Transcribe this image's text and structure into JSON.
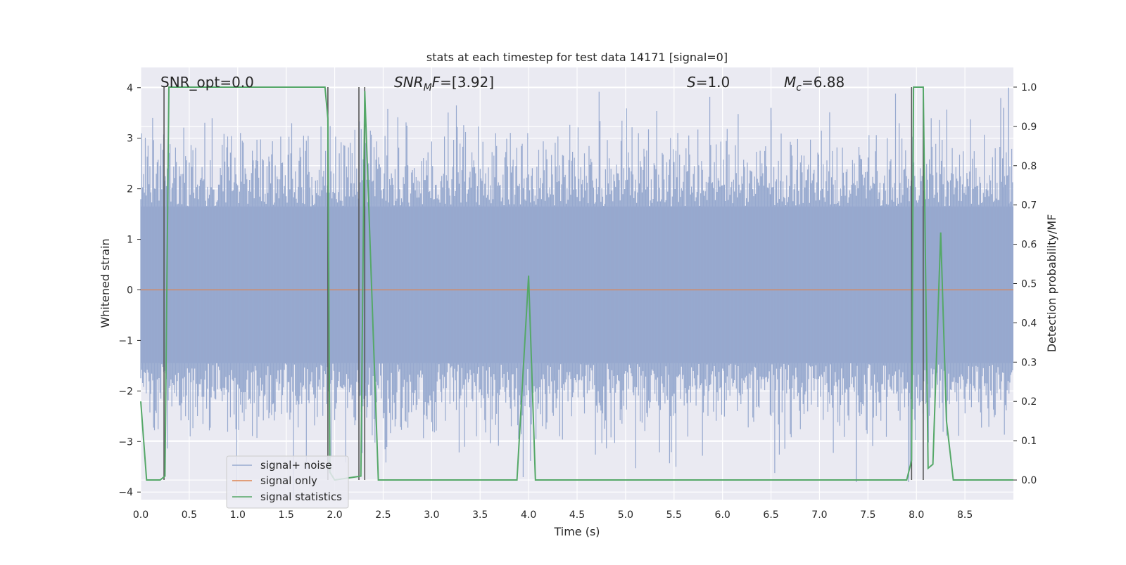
{
  "chart_data": {
    "type": "line",
    "title": "stats at each timestep for test data 14171 [signal=0]",
    "xlabel": "Time (s)",
    "ylabel": "Whitened strain",
    "y2label": "Detection probability/MF",
    "xlim": [
      0,
      9
    ],
    "ylim": [
      -4.15,
      4.4
    ],
    "y2lim": [
      -0.05,
      1.05
    ],
    "xticks": [
      "0.0",
      "0.5",
      "1.0",
      "1.5",
      "2.0",
      "2.5",
      "3.0",
      "3.5",
      "4.0",
      "4.5",
      "5.0",
      "5.5",
      "6.0",
      "6.5",
      "7.0",
      "7.5",
      "8.0",
      "8.5"
    ],
    "yticks": [
      "4",
      "3",
      "2",
      "1",
      "0",
      "−1",
      "−2",
      "−3",
      "−4"
    ],
    "y2ticks": [
      "1.0",
      "0.9",
      "0.8",
      "0.7",
      "0.6",
      "0.5",
      "0.4",
      "0.3",
      "0.2",
      "0.1",
      "0.0"
    ],
    "grid": true,
    "legend_position": "lower-left",
    "colors": {
      "signal_noise": "#97a9cf",
      "signal_only": "#dd8452",
      "statistics": "#55a868",
      "vlines": "#555555",
      "axes_bg": "#eaeaf2"
    },
    "series": [
      {
        "name": "signal+ noise",
        "kind": "noise-band",
        "core": [
          -1.45,
          1.65
        ],
        "spike_peaks": [
          3.6,
          4.0,
          3.6,
          -3.8,
          -3.8
        ],
        "note": "whitened noisy strain, roughly Gaussian around 0"
      },
      {
        "name": "signal only",
        "kind": "line",
        "x": [
          0,
          9
        ],
        "y": [
          0,
          0
        ]
      },
      {
        "name": "signal statistics",
        "kind": "line",
        "axis": "right",
        "x": [
          0.0,
          0.06,
          0.2,
          0.25,
          0.29,
          0.3,
          0.35,
          1.5,
          1.87,
          1.9,
          1.93,
          1.95,
          2.0,
          2.27,
          2.31,
          2.45,
          3.88,
          4.0,
          4.07,
          5.1,
          7.9,
          7.95,
          7.97,
          8.02,
          8.07,
          8.12,
          8.17,
          8.25,
          8.31,
          8.38,
          9.0
        ],
        "y": [
          0.2,
          0.0,
          0.0,
          0.01,
          1.0,
          1.0,
          1.0,
          1.0,
          1.0,
          1.0,
          0.92,
          0.02,
          0.0,
          0.01,
          0.99,
          0.0,
          0.0,
          0.52,
          0.0,
          0.0,
          0.0,
          0.05,
          1.0,
          1.0,
          1.0,
          0.03,
          0.04,
          0.63,
          0.15,
          0.0,
          0.0
        ]
      }
    ],
    "vertical_lines_x": [
      0.24,
      1.93,
      2.25,
      2.31,
      7.95,
      8.07
    ],
    "annotations": {
      "snr_opt": "SNR_opt=0.0",
      "snr_mf_main": "SNR",
      "snr_mf_sub": "M",
      "snr_mf_tail": "F",
      "snr_mf_value": "=[3.92]",
      "s_var": "S",
      "s_value": "=1.0",
      "mc_var": "M",
      "mc_sub": "c",
      "mc_value": "=6.88"
    }
  }
}
